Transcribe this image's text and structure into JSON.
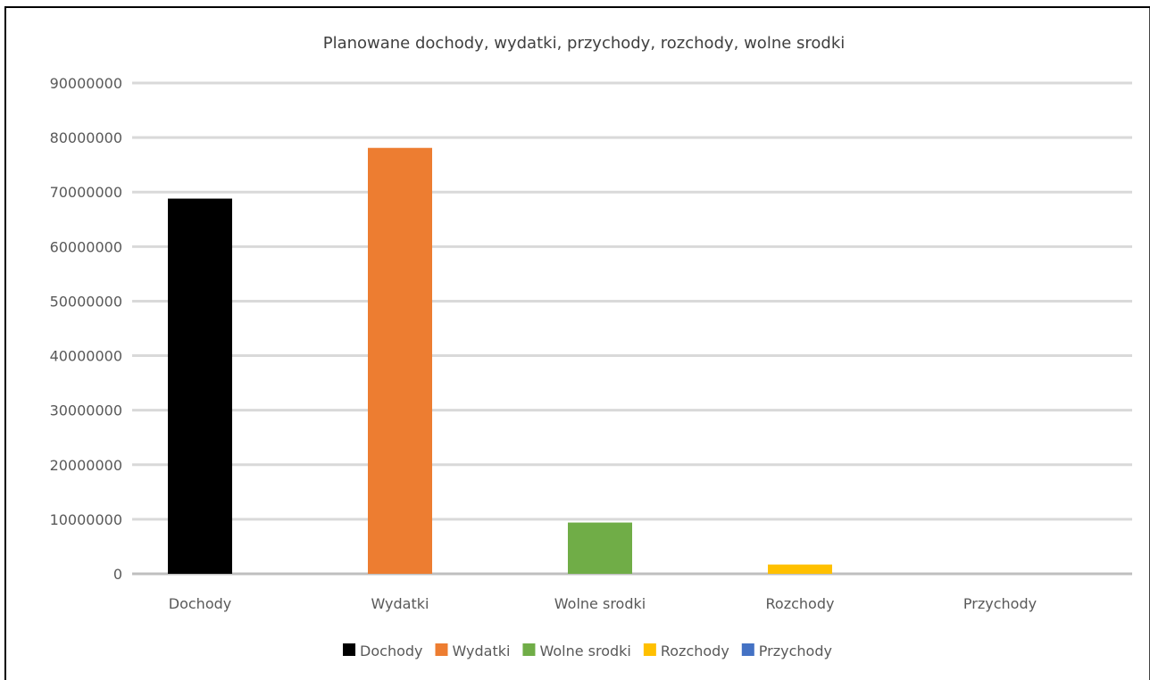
{
  "chart_data": {
    "type": "bar",
    "title": "Planowane dochody, wydatki, przychody, rozchody, wolne srodki",
    "xlabel": "",
    "ylabel": "",
    "ylim": [
      0,
      90000000
    ],
    "yticks": [
      0,
      10000000,
      20000000,
      30000000,
      40000000,
      50000000,
      60000000,
      70000000,
      80000000,
      90000000
    ],
    "categories": [
      "Dochody",
      "Wydatki",
      "Wolne srodki",
      "Rozchody",
      "Przychody"
    ],
    "series": [
      {
        "name": "Dochody",
        "color": "#000000",
        "values": [
          68800000,
          null,
          null,
          null,
          null
        ]
      },
      {
        "name": "Wydatki",
        "color": "#ED7D31",
        "values": [
          null,
          78100000,
          null,
          null,
          null
        ]
      },
      {
        "name": "Wolne srodki",
        "color": "#70AD47",
        "values": [
          null,
          null,
          9400000,
          null,
          null
        ]
      },
      {
        "name": "Rozchody",
        "color": "#FFC000",
        "values": [
          null,
          null,
          null,
          1700000,
          null
        ]
      },
      {
        "name": "Przychody",
        "color": "#4472C4",
        "values": [
          null,
          null,
          null,
          null,
          0
        ]
      }
    ],
    "grid": true,
    "legend": "bottom"
  }
}
